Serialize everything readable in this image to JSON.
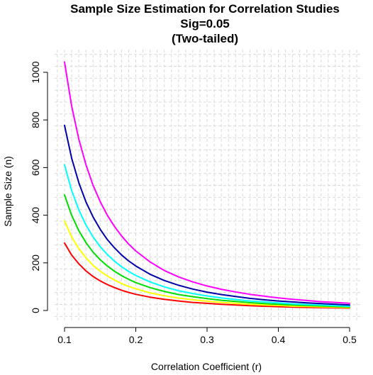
{
  "chart_data": {
    "type": "line",
    "title_lines": [
      "Sample Size Estimation for Correlation Studies",
      "Sig=0.05",
      "(Two-tailed)"
    ],
    "xlabel": "Correlation Coefficient (r)",
    "ylabel": "Sample Size (n)",
    "xlim": [
      0.1,
      0.5
    ],
    "ylim": [
      0,
      1050
    ],
    "xticks": [
      0.1,
      0.2,
      0.3,
      0.4,
      0.5
    ],
    "xtick_labels": [
      "0.1",
      "0.2",
      "0.3",
      "0.4",
      "0.5"
    ],
    "yticks": [
      0,
      200,
      400,
      600,
      800,
      1000
    ],
    "ytick_labels": [
      "0",
      "200",
      "400",
      "600",
      "800",
      "1000"
    ],
    "grid": true,
    "x": [
      0.1,
      0.11,
      0.12,
      0.13,
      0.14,
      0.15,
      0.16,
      0.17,
      0.18,
      0.19,
      0.2,
      0.22,
      0.24,
      0.26,
      0.28,
      0.3,
      0.32,
      0.34,
      0.36,
      0.38,
      0.4,
      0.42,
      0.44,
      0.46,
      0.48,
      0.5
    ],
    "series": [
      {
        "color": "#ff0000",
        "values": [
          283,
          233,
          196,
          166,
          143,
          124,
          109,
          96,
          85,
          76,
          68,
          56,
          47,
          40,
          34,
          30,
          26,
          23,
          20,
          18,
          16,
          14,
          13,
          12,
          11,
          10
        ]
      },
      {
        "color": "#ffff00",
        "values": [
          376,
          309,
          260,
          221,
          190,
          165,
          145,
          128,
          113,
          101,
          91,
          74,
          62,
          52,
          45,
          39,
          34,
          30,
          26,
          23,
          21,
          18,
          17,
          15,
          14,
          12
        ]
      },
      {
        "color": "#00dd00",
        "values": [
          485,
          400,
          335,
          285,
          245,
          213,
          187,
          165,
          146,
          131,
          117,
          96,
          80,
          67,
          58,
          50,
          43,
          38,
          33,
          29,
          26,
          23,
          21,
          19,
          17,
          15
        ]
      },
      {
        "color": "#00ffff",
        "values": [
          612,
          504,
          423,
          359,
          309,
          268,
          235,
          207,
          184,
          164,
          147,
          120,
          99,
          83,
          71,
          61,
          53,
          46,
          40,
          36,
          32,
          28,
          25,
          23,
          20,
          18
        ]
      },
      {
        "color": "#0000aa",
        "values": [
          777,
          640,
          537,
          456,
          393,
          341,
          298,
          263,
          233,
          208,
          187,
          152,
          126,
          106,
          90,
          77,
          67,
          59,
          51,
          45,
          40,
          36,
          32,
          29,
          26,
          23
        ]
      },
      {
        "color": "#ff00ff",
        "values": [
          1043,
          859,
          720,
          612,
          526,
          457,
          400,
          353,
          313,
          279,
          250,
          204,
          168,
          141,
          120,
          103,
          89,
          78,
          68,
          60,
          53,
          47,
          42,
          37,
          34,
          30
        ]
      }
    ]
  }
}
